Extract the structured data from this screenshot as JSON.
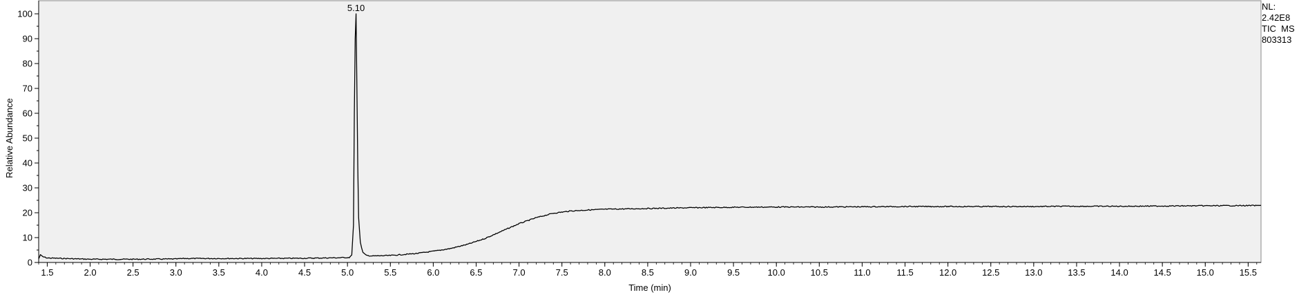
{
  "chart_data": {
    "type": "line",
    "xlabel": "Time (min)",
    "ylabel": "Relative Abundance",
    "xlim": [
      1.4,
      15.65
    ],
    "ylim": [
      0,
      100
    ],
    "x_ticks": [
      "1.5",
      "2.0",
      "2.5",
      "3.0",
      "3.5",
      "4.0",
      "4.5",
      "5.0",
      "5.5",
      "6.0",
      "6.5",
      "7.0",
      "7.5",
      "8.0",
      "8.5",
      "9.0",
      "9.5",
      "10.0",
      "10.5",
      "11.0",
      "11.5",
      "12.0",
      "12.5",
      "13.0",
      "13.5",
      "14.0",
      "14.5",
      "15.0",
      "15.5"
    ],
    "y_ticks": [
      "0",
      "10",
      "20",
      "30",
      "40",
      "50",
      "60",
      "70",
      "80",
      "90",
      "100"
    ],
    "grid": false,
    "peak_annotations": [
      {
        "x": 5.1,
        "y": 100,
        "label": "5.10"
      }
    ],
    "series": [
      {
        "points": [
          [
            1.4,
            1.5
          ],
          [
            1.42,
            3.0
          ],
          [
            1.45,
            2.3
          ],
          [
            1.5,
            1.8
          ],
          [
            2.0,
            1.3
          ],
          [
            2.5,
            1.3
          ],
          [
            3.0,
            1.4
          ],
          [
            3.1,
            1.6
          ],
          [
            3.5,
            1.6
          ],
          [
            4.0,
            1.6
          ],
          [
            4.5,
            1.7
          ],
          [
            4.9,
            1.9
          ],
          [
            5.02,
            2.0
          ],
          [
            5.05,
            3.0
          ],
          [
            5.07,
            15.0
          ],
          [
            5.08,
            60.0
          ],
          [
            5.09,
            90.0
          ],
          [
            5.1,
            100.0
          ],
          [
            5.11,
            70.0
          ],
          [
            5.12,
            39.0
          ],
          [
            5.13,
            18.0
          ],
          [
            5.15,
            8.0
          ],
          [
            5.18,
            4.0
          ],
          [
            5.22,
            2.8
          ],
          [
            5.3,
            2.6
          ],
          [
            5.5,
            2.8
          ],
          [
            5.8,
            3.6
          ],
          [
            6.0,
            4.5
          ],
          [
            6.2,
            5.6
          ],
          [
            6.4,
            7.3
          ],
          [
            6.6,
            9.6
          ],
          [
            6.8,
            12.6
          ],
          [
            7.0,
            15.6
          ],
          [
            7.2,
            18.0
          ],
          [
            7.4,
            19.8
          ],
          [
            7.6,
            20.7
          ],
          [
            7.8,
            21.1
          ],
          [
            8.0,
            21.4
          ],
          [
            8.5,
            21.7
          ],
          [
            9.0,
            22.0
          ],
          [
            9.5,
            22.2
          ],
          [
            10.0,
            22.3
          ],
          [
            10.5,
            22.3
          ],
          [
            11.0,
            22.4
          ],
          [
            11.5,
            22.5
          ],
          [
            12.0,
            22.5
          ],
          [
            12.5,
            22.5
          ],
          [
            13.0,
            22.5
          ],
          [
            13.5,
            22.6
          ],
          [
            14.0,
            22.6
          ],
          [
            14.5,
            22.7
          ],
          [
            15.0,
            22.8
          ],
          [
            15.65,
            22.9
          ]
        ]
      }
    ]
  },
  "nl_block": {
    "line1": "NL:",
    "line2": "2.42E8",
    "line3": "TIC  MS",
    "line4": "803313"
  }
}
